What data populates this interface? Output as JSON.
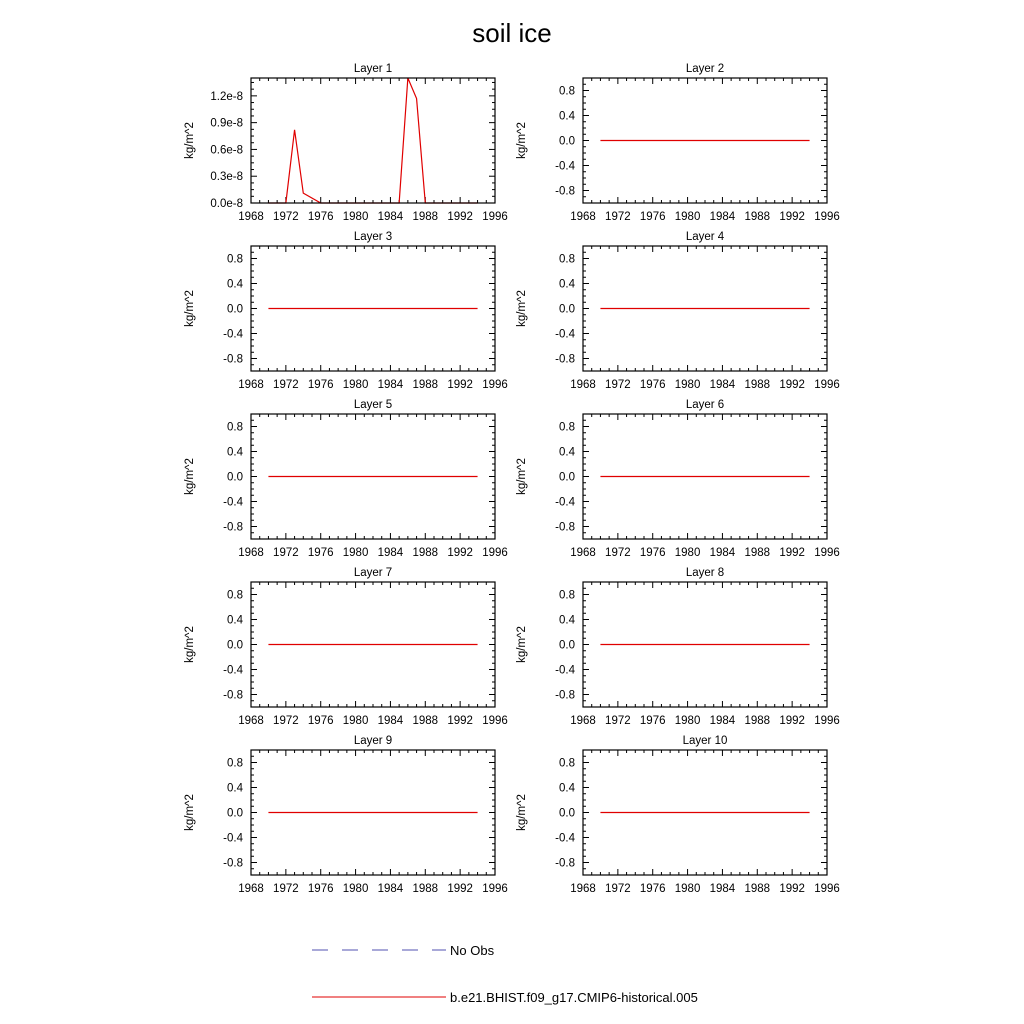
{
  "figure": {
    "title": "soil ice"
  },
  "legend": {
    "entries": [
      {
        "label": "No Obs",
        "color": "#5050b0",
        "style": "dashed"
      },
      {
        "label": "b.e21.BHIST.f09_g17.CMIP6-historical.005",
        "color": "#e00000",
        "style": "solid"
      }
    ]
  },
  "chart_data": [
    {
      "type": "line",
      "title": "Layer 1",
      "ylabel": "kg/m^2",
      "xlim": [
        1968,
        1996
      ],
      "ylim": [
        0,
        1.4e-08
      ],
      "xticks": [
        1968,
        1972,
        1976,
        1980,
        1984,
        1988,
        1992,
        1996
      ],
      "yticks": [
        0,
        3e-09,
        6e-09,
        9e-09,
        1.2e-08
      ],
      "ytick_labels": [
        "0.0e-8",
        "0.3e-8",
        "0.6e-8",
        "0.9e-8",
        "1.2e-8"
      ],
      "series": [
        {
          "color": "#e00000",
          "x": [
            1970,
            1972,
            1973,
            1974,
            1976,
            1978,
            1980,
            1982,
            1984,
            1985,
            1986,
            1987,
            1988,
            1990,
            1992,
            1994
          ],
          "y": [
            0,
            0,
            8.2e-09,
            1.1e-09,
            0,
            0,
            0,
            0,
            0,
            0,
            1.4e-08,
            1.17e-08,
            0,
            0,
            0,
            0
          ]
        }
      ]
    },
    {
      "type": "line",
      "title": "Layer 2",
      "ylabel": "kg/m^2",
      "xlim": [
        1968,
        1996
      ],
      "ylim": [
        -1,
        1
      ],
      "xticks": [
        1968,
        1972,
        1976,
        1980,
        1984,
        1988,
        1992,
        1996
      ],
      "yticks": [
        -0.8,
        -0.4,
        0,
        0.4,
        0.8
      ],
      "ytick_labels": [
        "-0.8",
        "-0.4",
        "0.0",
        "0.4",
        "0.8"
      ],
      "series": [
        {
          "color": "#e00000",
          "x": [
            1970,
            1994
          ],
          "y": [
            0,
            0
          ]
        }
      ]
    },
    {
      "type": "line",
      "title": "Layer 3",
      "ylabel": "kg/m^2",
      "xlim": [
        1968,
        1996
      ],
      "ylim": [
        -1,
        1
      ],
      "xticks": [
        1968,
        1972,
        1976,
        1980,
        1984,
        1988,
        1992,
        1996
      ],
      "yticks": [
        -0.8,
        -0.4,
        0,
        0.4,
        0.8
      ],
      "ytick_labels": [
        "-0.8",
        "-0.4",
        "0.0",
        "0.4",
        "0.8"
      ],
      "series": [
        {
          "color": "#e00000",
          "x": [
            1970,
            1994
          ],
          "y": [
            0,
            0
          ]
        }
      ]
    },
    {
      "type": "line",
      "title": "Layer 4",
      "ylabel": "kg/m^2",
      "xlim": [
        1968,
        1996
      ],
      "ylim": [
        -1,
        1
      ],
      "xticks": [
        1968,
        1972,
        1976,
        1980,
        1984,
        1988,
        1992,
        1996
      ],
      "yticks": [
        -0.8,
        -0.4,
        0,
        0.4,
        0.8
      ],
      "ytick_labels": [
        "-0.8",
        "-0.4",
        "0.0",
        "0.4",
        "0.8"
      ],
      "series": [
        {
          "color": "#e00000",
          "x": [
            1970,
            1994
          ],
          "y": [
            0,
            0
          ]
        }
      ]
    },
    {
      "type": "line",
      "title": "Layer 5",
      "ylabel": "kg/m^2",
      "xlim": [
        1968,
        1996
      ],
      "ylim": [
        -1,
        1
      ],
      "xticks": [
        1968,
        1972,
        1976,
        1980,
        1984,
        1988,
        1992,
        1996
      ],
      "yticks": [
        -0.8,
        -0.4,
        0,
        0.4,
        0.8
      ],
      "ytick_labels": [
        "-0.8",
        "-0.4",
        "0.0",
        "0.4",
        "0.8"
      ],
      "series": [
        {
          "color": "#e00000",
          "x": [
            1970,
            1994
          ],
          "y": [
            0,
            0
          ]
        }
      ]
    },
    {
      "type": "line",
      "title": "Layer 6",
      "ylabel": "kg/m^2",
      "xlim": [
        1968,
        1996
      ],
      "ylim": [
        -1,
        1
      ],
      "xticks": [
        1968,
        1972,
        1976,
        1980,
        1984,
        1988,
        1992,
        1996
      ],
      "yticks": [
        -0.8,
        -0.4,
        0,
        0.4,
        0.8
      ],
      "ytick_labels": [
        "-0.8",
        "-0.4",
        "0.0",
        "0.4",
        "0.8"
      ],
      "series": [
        {
          "color": "#e00000",
          "x": [
            1970,
            1994
          ],
          "y": [
            0,
            0
          ]
        }
      ]
    },
    {
      "type": "line",
      "title": "Layer 7",
      "ylabel": "kg/m^2",
      "xlim": [
        1968,
        1996
      ],
      "ylim": [
        -1,
        1
      ],
      "xticks": [
        1968,
        1972,
        1976,
        1980,
        1984,
        1988,
        1992,
        1996
      ],
      "yticks": [
        -0.8,
        -0.4,
        0,
        0.4,
        0.8
      ],
      "ytick_labels": [
        "-0.8",
        "-0.4",
        "0.0",
        "0.4",
        "0.8"
      ],
      "series": [
        {
          "color": "#e00000",
          "x": [
            1970,
            1994
          ],
          "y": [
            0,
            0
          ]
        }
      ]
    },
    {
      "type": "line",
      "title": "Layer 8",
      "ylabel": "kg/m^2",
      "xlim": [
        1968,
        1996
      ],
      "ylim": [
        -1,
        1
      ],
      "xticks": [
        1968,
        1972,
        1976,
        1980,
        1984,
        1988,
        1992,
        1996
      ],
      "yticks": [
        -0.8,
        -0.4,
        0,
        0.4,
        0.8
      ],
      "ytick_labels": [
        "-0.8",
        "-0.4",
        "0.0",
        "0.4",
        "0.8"
      ],
      "series": [
        {
          "color": "#e00000",
          "x": [
            1970,
            1994
          ],
          "y": [
            0,
            0
          ]
        }
      ]
    },
    {
      "type": "line",
      "title": "Layer 9",
      "ylabel": "kg/m^2",
      "xlim": [
        1968,
        1996
      ],
      "ylim": [
        -1,
        1
      ],
      "xticks": [
        1968,
        1972,
        1976,
        1980,
        1984,
        1988,
        1992,
        1996
      ],
      "yticks": [
        -0.8,
        -0.4,
        0,
        0.4,
        0.8
      ],
      "ytick_labels": [
        "-0.8",
        "-0.4",
        "0.0",
        "0.4",
        "0.8"
      ],
      "series": [
        {
          "color": "#e00000",
          "x": [
            1970,
            1994
          ],
          "y": [
            0,
            0
          ]
        }
      ]
    },
    {
      "type": "line",
      "title": "Layer 10",
      "ylabel": "kg/m^2",
      "xlim": [
        1968,
        1996
      ],
      "ylim": [
        -1,
        1
      ],
      "xticks": [
        1968,
        1972,
        1976,
        1980,
        1984,
        1988,
        1992,
        1996
      ],
      "yticks": [
        -0.8,
        -0.4,
        0,
        0.4,
        0.8
      ],
      "ytick_labels": [
        "-0.8",
        "-0.4",
        "0.0",
        "0.4",
        "0.8"
      ],
      "series": [
        {
          "color": "#e00000",
          "x": [
            1970,
            1994
          ],
          "y": [
            0,
            0
          ]
        }
      ]
    }
  ]
}
